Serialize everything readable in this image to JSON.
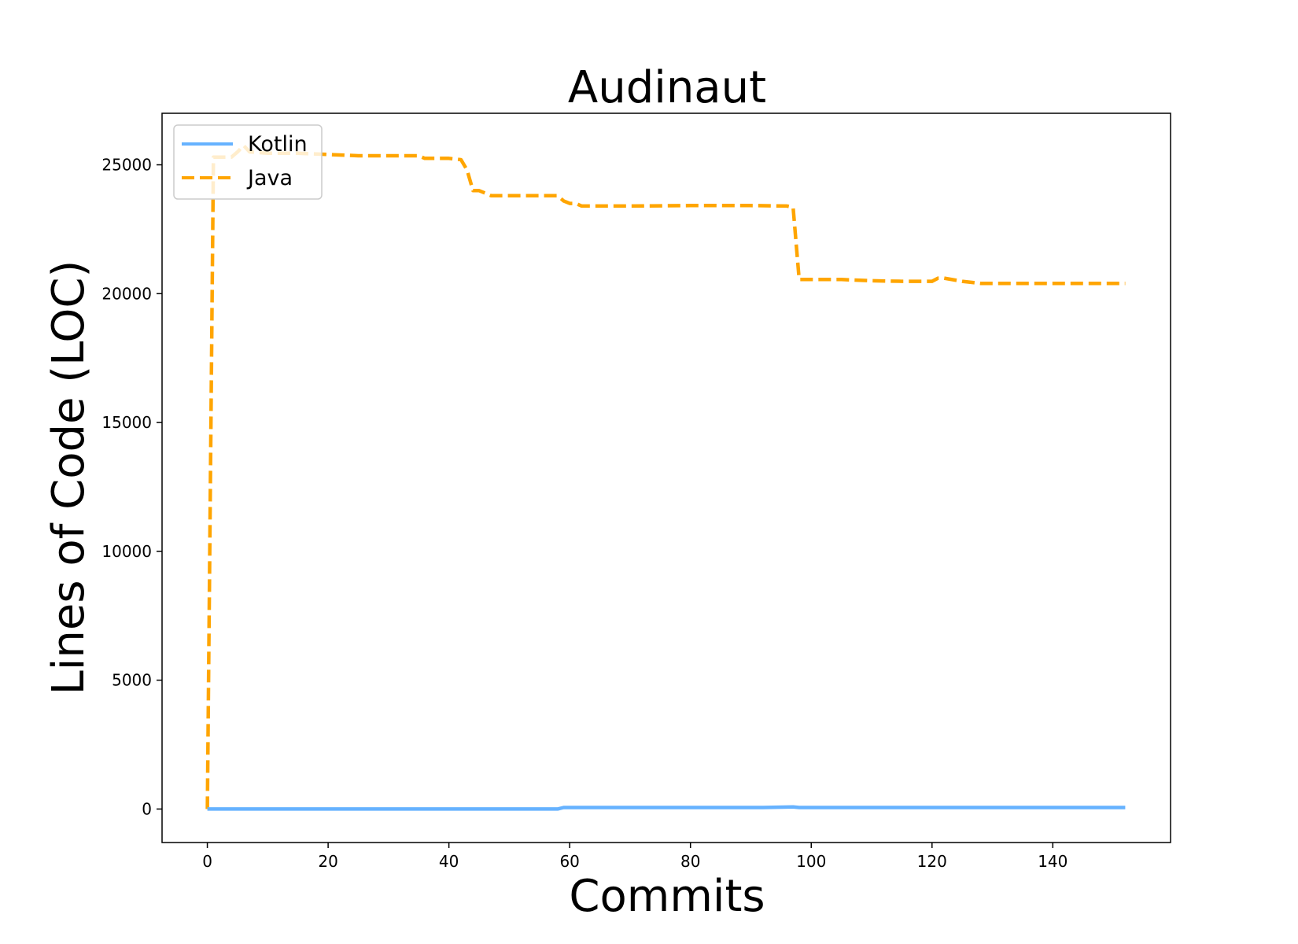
{
  "chart_data": {
    "type": "line",
    "title": "Audinaut",
    "xlabel": "Commits",
    "ylabel": "Lines of Code (LOC)",
    "xlim": [
      -7.5,
      159.5
    ],
    "ylim": [
      -1300,
      27000
    ],
    "xticks": [
      0,
      20,
      40,
      60,
      80,
      100,
      120,
      140
    ],
    "yticks": [
      0,
      5000,
      10000,
      15000,
      20000,
      25000
    ],
    "grid": false,
    "legend_position": "top-left",
    "series": [
      {
        "name": "Kotlin",
        "color": "#66b2ff",
        "style": "solid",
        "x": [
          0,
          58,
          59,
          92,
          97,
          98,
          152
        ],
        "y": [
          0,
          0,
          60,
          60,
          80,
          60,
          60
        ]
      },
      {
        "name": "Java",
        "color": "#ffa500",
        "style": "dashed",
        "x": [
          0,
          1,
          2,
          4,
          5,
          6,
          7,
          10,
          15,
          20,
          25,
          30,
          35,
          36,
          40,
          42,
          43,
          44,
          45,
          46,
          47,
          55,
          58,
          59,
          60,
          61,
          62,
          70,
          80,
          90,
          96,
          97,
          98,
          100,
          105,
          110,
          115,
          120,
          121,
          122,
          125,
          128,
          130,
          135,
          140,
          145,
          152
        ],
        "y": [
          0,
          25300,
          25300,
          25300,
          25500,
          25750,
          25500,
          25450,
          25450,
          25400,
          25350,
          25350,
          25350,
          25250,
          25250,
          25200,
          24800,
          24000,
          24000,
          23900,
          23800,
          23800,
          23800,
          23600,
          23500,
          23500,
          23400,
          23400,
          23420,
          23420,
          23400,
          23350,
          20550,
          20550,
          20550,
          20500,
          20480,
          20480,
          20600,
          20600,
          20480,
          20400,
          20400,
          20400,
          20400,
          20400,
          20400
        ]
      }
    ]
  }
}
